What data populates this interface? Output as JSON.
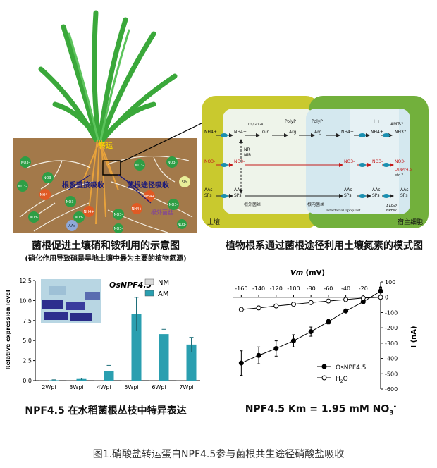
{
  "panel_a": {
    "labels": {
      "transport": "转运",
      "direct_uptake": "根系直接吸收",
      "fungal_uptake": "菌根途径吸收",
      "fungal_hyphae": "根外菌丝"
    },
    "ions": [
      "NO3-",
      "NO3-",
      "NO3-",
      "NH4+",
      "NO3-",
      "NO3-",
      "NH4+",
      "NO3-",
      "NO3-",
      "NO3-",
      "NH4+",
      "NO3-",
      "NO3-",
      "NH4+",
      "NO3-",
      "NO3-"
    ],
    "ions_other": [
      "AAs",
      "SPs"
    ],
    "caption": "菌根促进土壤硝和铵利用的示意图",
    "subcaption": "(硝化作用导致硝是旱地土壤中最为主要的植物氮源)"
  },
  "panel_b": {
    "caption": "植物根系通过菌根途径利用土壤氮素的模式图",
    "soil_label": "土壤",
    "host_label": "宿主细胞",
    "hyphae_label": "根外菌丝",
    "intra_label": "根内菌丝",
    "apoplast_label": "Interfacial apoplast",
    "nodes": {
      "nh4_soil": "NH4+",
      "nh4_hyph": "NH4+",
      "gs": "GS/GOGAT",
      "gln": "Gln",
      "arg1": "Arg",
      "arg2": "Arg",
      "polyp1": "PolyP",
      "polyp2": "PolyP",
      "nh4_arb": "NH4+",
      "h_plus": "H+",
      "nh4_apo": "NH4+",
      "nh3": "NH3?",
      "amts": "AMTs?",
      "no3_soil": "NO3-",
      "no3_hyph": "NO3-",
      "no3_arb": "NO3-",
      "no3_apo": "NO3-",
      "osnpf": "OsNPF4.5",
      "etc": "etc.?",
      "no3_host": "NO3-",
      "nr": "NR",
      "nir": "NiR",
      "aas_soil": "AAs",
      "sps_soil": "SPs",
      "aas_hyph": "AAs",
      "sps_hyph": "SPs",
      "aas_arb": "AAs",
      "sps_arb": "SPs",
      "aas_apo": "AAs",
      "sps_apo": "SPs",
      "aaps": "AAPs?",
      "npfs": "NPFs?",
      "aas_host": "AAs",
      "sps_host": "SPs"
    }
  },
  "panel_c": {
    "caption": "NPF4.5 在水稻菌根丛枝中特异表达",
    "inset_title": "OsNPF4.5",
    "chart_data": {
      "type": "bar",
      "title": "OsNPF4.5",
      "categories": [
        "2Wpi",
        "3Wpi",
        "4Wpi",
        "5Wpi",
        "6Wpi",
        "7Wpi"
      ],
      "series": [
        {
          "name": "NM",
          "values": [
            0,
            0,
            0,
            0,
            0,
            0
          ],
          "color": "#d9d9d9"
        },
        {
          "name": "AM",
          "values": [
            0.05,
            0.2,
            1.2,
            8.3,
            5.8,
            4.5
          ],
          "errors": [
            0.05,
            0.1,
            0.7,
            2.1,
            0.6,
            0.9
          ],
          "color": "#2a9fb0"
        }
      ],
      "ylabel": "Relative expression level",
      "ylim": [
        0,
        12.5
      ],
      "yticks": [
        "0.0",
        "2.5",
        "5.0",
        "7.5",
        "10.0",
        "12.5"
      ]
    }
  },
  "panel_d": {
    "caption_prefix": "NPF4.5 Km = 1.95 mM NO",
    "caption_sub": "3",
    "caption_sup": "-",
    "chart_data": {
      "type": "line",
      "xlabel_i": "Vm",
      "xlabel_u": " (mV)",
      "ylabel": "I (nA)",
      "x": [
        -160,
        -140,
        -120,
        -100,
        -80,
        -60,
        -40,
        -20,
        0
      ],
      "xticks": [
        "-160",
        "-140",
        "-120",
        "-100",
        "-80",
        "-60",
        "-40",
        "-20",
        "0"
      ],
      "yticks": [
        "100",
        "0",
        "-100",
        "-200",
        "-300",
        "-400",
        "-500",
        "-600"
      ],
      "xlim": [
        -170,
        0
      ],
      "ylim": [
        -600,
        100
      ],
      "series": [
        {
          "name": "OsNPF4.5",
          "marker": "filled",
          "values": [
            -430,
            -380,
            -335,
            -285,
            -225,
            -160,
            -90,
            -30,
            40
          ],
          "errors": [
            80,
            55,
            50,
            40,
            30,
            15,
            10,
            10,
            25
          ]
        },
        {
          "name": "H2O",
          "label_main": "H",
          "label_sub": "2",
          "label_end": "O",
          "marker": "open",
          "values": [
            -80,
            -70,
            -57,
            -46,
            -35,
            -25,
            -15,
            -5,
            0
          ],
          "errors": [
            15,
            12,
            10,
            8,
            6,
            5,
            4,
            3,
            3
          ]
        }
      ]
    }
  },
  "figure_caption": "图1.硝酸盐转运蛋白NPF4.5参与菌根共生途径硝酸盐吸收"
}
